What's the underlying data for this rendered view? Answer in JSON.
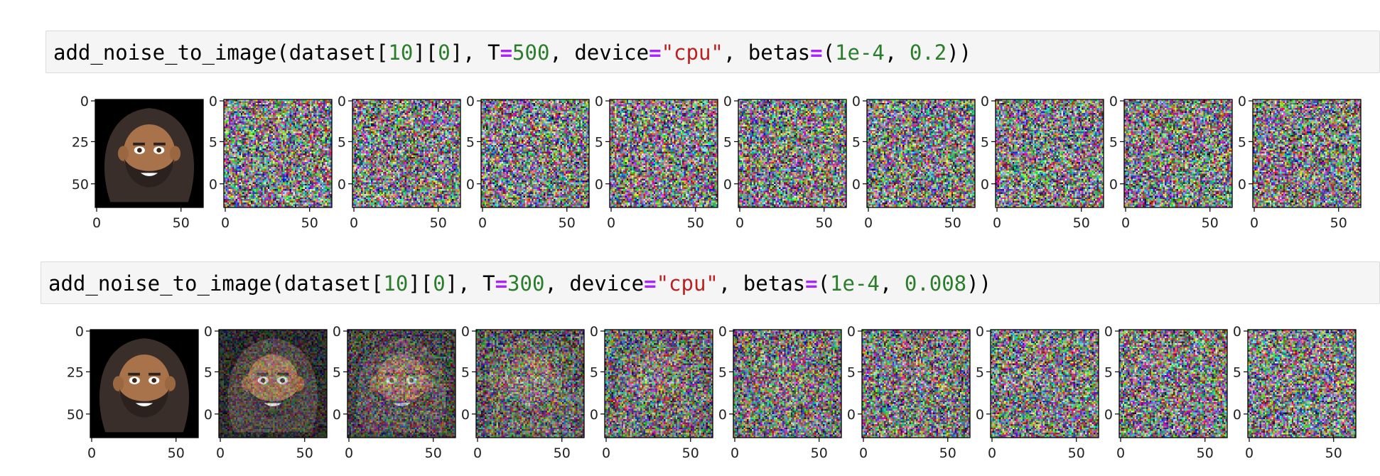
{
  "cells": [
    {
      "code": {
        "fn": "add_noise_to_image(dataset[",
        "idx1": "10",
        "mid1": "][",
        "idx2": "0",
        "mid2": "], T",
        "eq1": "=",
        "tval": "500",
        "mid3": ", device",
        "eq2": "=",
        "dev": "\"cpu\"",
        "mid4": ", betas",
        "eq3": "=",
        "mid5": "(",
        "b1": "1e-4",
        "mid6": ", ",
        "b2": "0.2",
        "end": "))"
      },
      "noise_levels": [
        0,
        1,
        1,
        1,
        1,
        1,
        1,
        1,
        1,
        1
      ]
    },
    {
      "code": {
        "fn": "add_noise_to_image(dataset[",
        "idx1": "10",
        "mid1": "][",
        "idx2": "0",
        "mid2": "], T",
        "eq1": "=",
        "tval": "300",
        "mid3": ", device",
        "eq2": "=",
        "dev": "\"cpu\"",
        "mid4": ", betas",
        "eq3": "=",
        "mid5": "(",
        "b1": "1e-4",
        "mid6": ", ",
        "b2": "0.008",
        "end": "))"
      },
      "noise_levels": [
        0,
        0.35,
        0.55,
        0.72,
        0.84,
        0.9,
        0.94,
        0.97,
        0.99,
        1
      ]
    }
  ],
  "axes": {
    "yticks": [
      "0",
      "25",
      "50"
    ],
    "yticks_clipped": [
      "0",
      "5",
      "0"
    ],
    "xticks": [
      "0",
      "50"
    ]
  },
  "colors": {
    "code_number": "#2a7d2a",
    "code_operator": "#aa22ff",
    "code_string": "#ba2121",
    "cell_bg": "#f5f5f5"
  }
}
